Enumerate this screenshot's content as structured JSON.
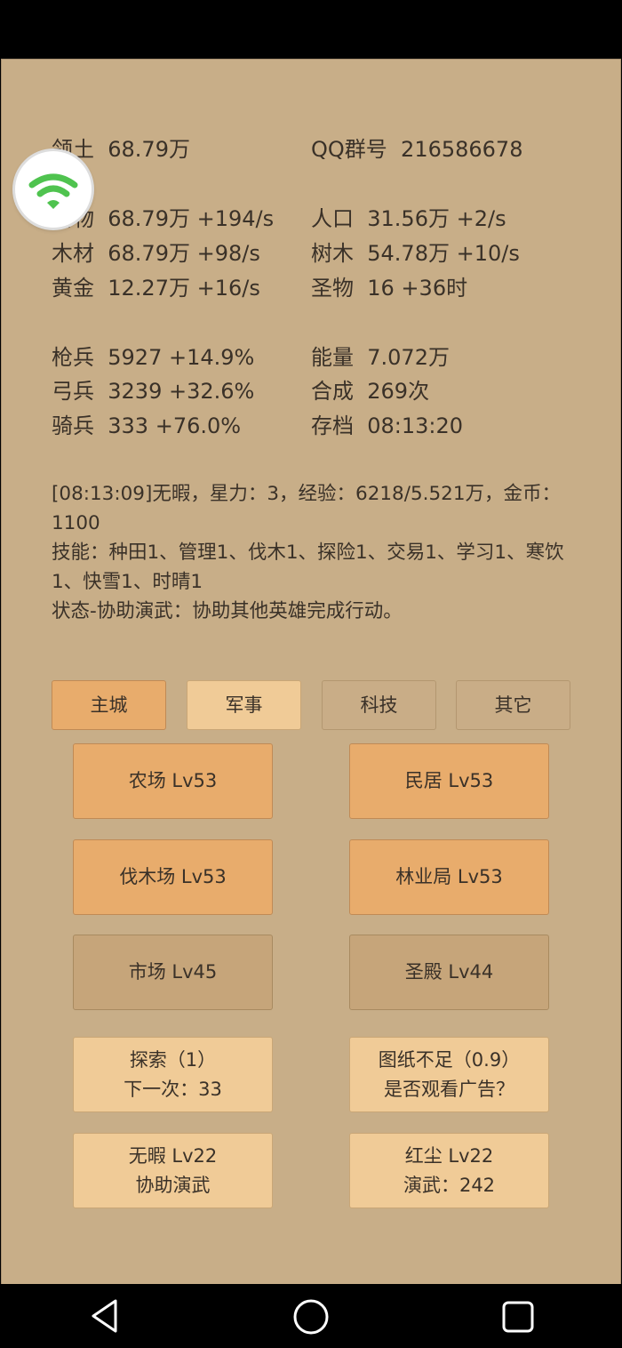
{
  "stats": {
    "territory": {
      "label": "领土",
      "value": "68.79万"
    },
    "qq_group": {
      "label": "QQ群号",
      "value": "216586678"
    },
    "food": {
      "label": "食物",
      "value": "68.79万 +194/s"
    },
    "population": {
      "label": "人口",
      "value": "31.56万 +2/s"
    },
    "wood": {
      "label": "木材",
      "value": "68.79万 +98/s"
    },
    "trees": {
      "label": "树木",
      "value": "54.78万 +10/s"
    },
    "gold": {
      "label": "黄金",
      "value": "12.27万 +16/s"
    },
    "relics": {
      "label": "圣物",
      "value": "16 +36时"
    },
    "spearmen": {
      "label": "枪兵",
      "value": "5927 +14.9%"
    },
    "energy": {
      "label": "能量",
      "value": "7.072万"
    },
    "archers": {
      "label": "弓兵",
      "value": "3239 +32.6%"
    },
    "synthesis": {
      "label": "合成",
      "value": "269次"
    },
    "cavalry": {
      "label": "骑兵",
      "value": "333 +76.0%"
    },
    "save": {
      "label": "存档",
      "value": "08:13:20"
    }
  },
  "log": {
    "line1": "[08:13:09]无暇，星力：3，经验：6218/5.521万，金币：1100",
    "line2": "技能：种田1、管理1、伐木1、探险1、交易1、学习1、寒饮1、快雪1、时晴1",
    "line3": "状态-协助演武：协助其他英雄完成行动。"
  },
  "tabs": [
    {
      "label": "主城",
      "state": "active"
    },
    {
      "label": "军事",
      "state": "highlight"
    },
    {
      "label": "科技",
      "state": "normal"
    },
    {
      "label": "其它",
      "state": "normal"
    }
  ],
  "buildings": [
    {
      "label": "农场 Lv53"
    },
    {
      "label": "民居 Lv53"
    },
    {
      "label": "伐木场 Lv53"
    },
    {
      "label": "林业局 Lv53"
    },
    {
      "label": "市场 Lv45"
    },
    {
      "label": "圣殿 Lv44"
    }
  ],
  "actions": {
    "explore": {
      "line1": "探索（1）",
      "line2": "下一次：33"
    },
    "blueprint": {
      "line1": "图纸不足（0.9）",
      "line2": "是否观看广告？"
    },
    "hero1": {
      "line1": "无暇 Lv22",
      "line2": "协助演武"
    },
    "hero2": {
      "line1": "红尘 Lv22",
      "line2": "演武：242"
    }
  },
  "colors": {
    "background": "#c8ae88",
    "active": "#e8ac6c",
    "highlight": "#f0cb97",
    "wifi": "#4fc34f"
  },
  "icons": {
    "floating": "wifi-icon",
    "nav": [
      "back-icon",
      "home-icon",
      "recents-icon"
    ]
  }
}
